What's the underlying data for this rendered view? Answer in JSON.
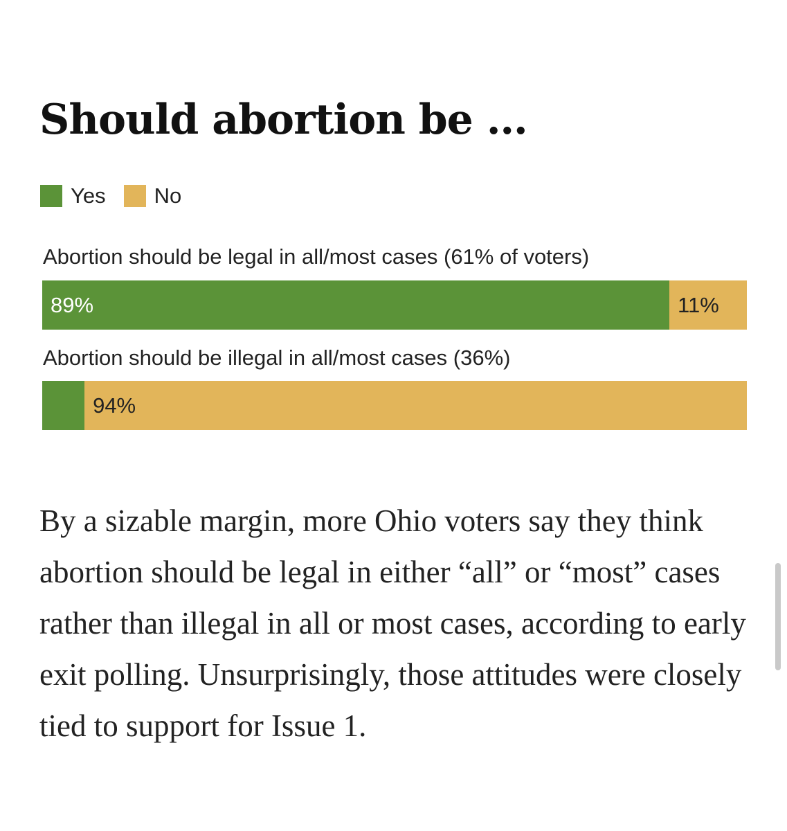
{
  "article": {
    "paragraph": "By a sizable margin, more Ohio voters say they think abortion should be legal in either “all” or “most” cases rather than illegal in all or most cases, according to early exit polling. Unsurprisingly, those attitudes were closely tied to support for Issue 1."
  },
  "colors": {
    "yes": "#5b9338",
    "no": "#e2b55a"
  },
  "chart_data": {
    "type": "bar",
    "orientation": "horizontal-stacked-100",
    "title": "Should abortion be …",
    "legend": [
      {
        "name": "Yes",
        "color": "#5b9338"
      },
      {
        "name": "No",
        "color": "#e2b55a"
      }
    ],
    "legend_position": "top-left",
    "rows": [
      {
        "label": "Abortion should be legal in all/most cases (61% of voters)",
        "values": {
          "Yes": 89,
          "No": 11
        },
        "value_labels": {
          "Yes": "89%",
          "No": "11%"
        }
      },
      {
        "label": "Abortion should be illegal in all/most cases (36%)",
        "values": {
          "Yes": 6,
          "No": 94
        },
        "value_labels": {
          "Yes": "",
          "No": "94%"
        }
      }
    ],
    "xlim": [
      0,
      100
    ]
  }
}
